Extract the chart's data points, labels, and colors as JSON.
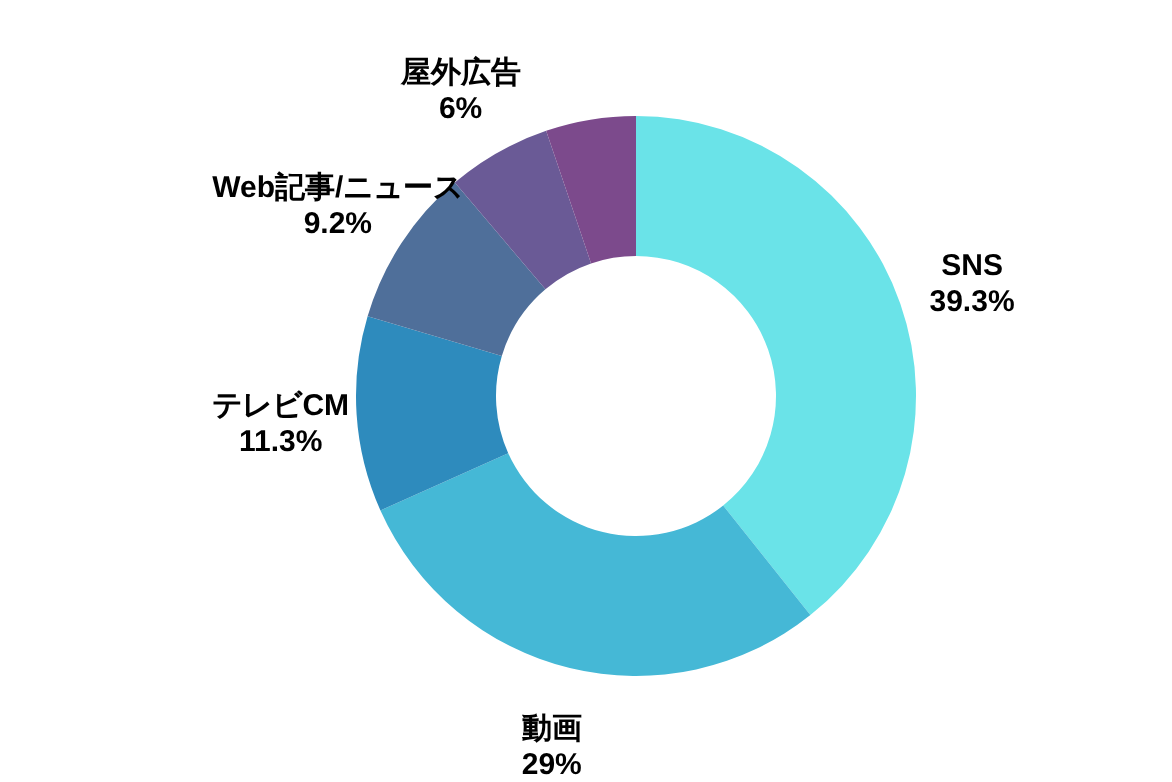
{
  "chart_data": {
    "type": "donut",
    "categories": [
      "SNS",
      "動画",
      "テレビCM",
      "Web記事/ニュース",
      "屋外広告",
      null
    ],
    "values": [
      39.3,
      29,
      11.3,
      9.2,
      6,
      5.2
    ],
    "value_labels": [
      "39.3%",
      "29%",
      "11.3%",
      "9.2%",
      "6%",
      null
    ],
    "colors": [
      "#6ae3e8",
      "#45b8d6",
      "#2e8bbd",
      "#4f6f9a",
      "#6a5a96",
      "#7c4a8c"
    ]
  }
}
